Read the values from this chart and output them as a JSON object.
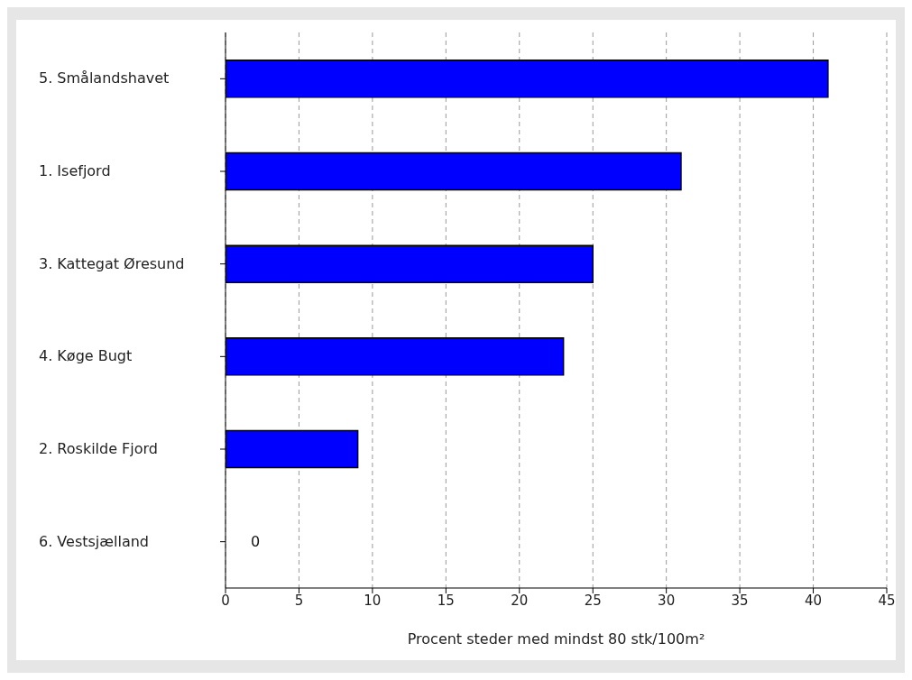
{
  "chart_data": {
    "type": "bar",
    "orientation": "horizontal",
    "xlabel": "Procent steder med mindst 80 stk/100m²",
    "categories": [
      "5.  Smålandshavet",
      "1.  Isefjord",
      "3.  Kattegat Øresund",
      "4.  Køge Bugt",
      "2.  Roskilde Fjord",
      "6.  Vestsjælland"
    ],
    "values": [
      41,
      31,
      25,
      23,
      9,
      0
    ],
    "value_labels": [
      null,
      null,
      null,
      null,
      null,
      "0"
    ],
    "color": "#0000ff",
    "xlim": [
      0,
      45
    ],
    "xticks": [
      0,
      5,
      10,
      15,
      20,
      25,
      30,
      35,
      40,
      45
    ],
    "grid": "x"
  }
}
